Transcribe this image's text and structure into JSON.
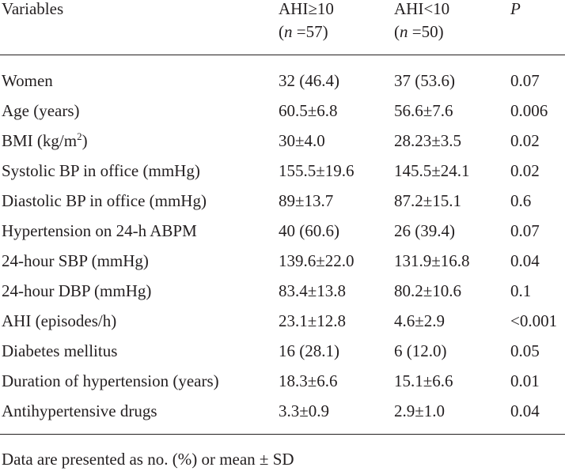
{
  "header": {
    "variables": "Variables",
    "group1_name": "AHI≥10",
    "group1_n_open": "(",
    "group1_n_label": "n",
    "group1_n_value": " =57)",
    "group2_name": "AHI<10",
    "group2_n_open": "(",
    "group2_n_label": "n",
    "group2_n_value": " =50)",
    "p_label": "P"
  },
  "rows": [
    {
      "variable": "Women",
      "group1": "32 (46.4)",
      "group2": "37 (53.6)",
      "p": "0.07"
    },
    {
      "variable": "Age (years)",
      "group1": "60.5±6.8",
      "group2": "56.6±7.6",
      "p": "0.006"
    },
    {
      "variable": "BMI (kg/m",
      "variable_sup": "2",
      "variable_tail": ")",
      "group1": "30±4.0",
      "group2": "28.23±3.5",
      "p": "0.02"
    },
    {
      "variable": "Systolic BP in office (mmHg)",
      "group1": "155.5±19.6",
      "group2": "145.5±24.1",
      "p": "0.02"
    },
    {
      "variable": "Diastolic BP in office (mmHg)",
      "group1": "89±13.7",
      "group2": "87.2±15.1",
      "p": "0.6"
    },
    {
      "variable": "Hypertension on 24-h ABPM",
      "group1": "40 (60.6)",
      "group2": "26 (39.4)",
      "p": "0.07"
    },
    {
      "variable": "24-hour SBP (mmHg)",
      "group1": "139.6±22.0",
      "group2": "131.9±16.8",
      "p": "0.04"
    },
    {
      "variable": "24-hour DBP (mmHg)",
      "group1": "83.4±13.8",
      "group2": "80.2±10.6",
      "p": "0.1"
    },
    {
      "variable": "AHI (episodes/h)",
      "group1": "23.1±12.8",
      "group2": "4.6±2.9",
      "p": "<0.001"
    },
    {
      "variable": "Diabetes mellitus",
      "group1": "16 (28.1)",
      "group2": "6 (12.0)",
      "p": "0.05"
    },
    {
      "variable": "Duration of hypertension (years)",
      "group1": "18.3±6.6",
      "group2": "15.1±6.6",
      "p": "0.01"
    },
    {
      "variable": "Antihypertensive drugs",
      "group1": "3.3±0.9",
      "group2": "2.9±1.0",
      "p": "0.04"
    }
  ],
  "footnote": "Data are presented as no. (%) or mean ± SD"
}
